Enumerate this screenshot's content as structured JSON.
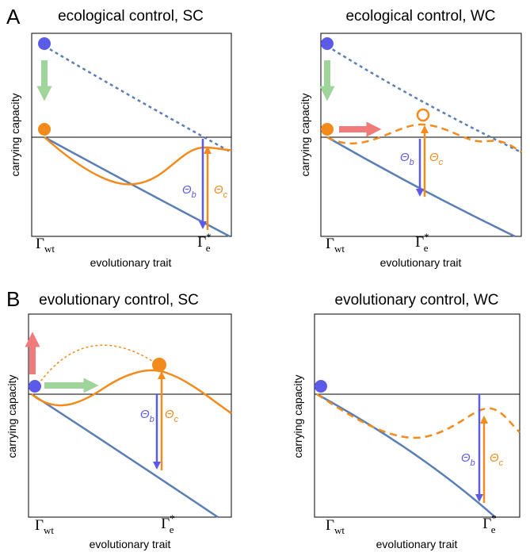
{
  "figure_labels": [
    "A",
    "B"
  ],
  "panels": [
    {
      "title": "ecological control, SC",
      "y_label": "carrying capacity",
      "x_label": "evolutionary trait",
      "x_ticks": [
        {
          "symbol": "Γ",
          "sub": "wt"
        },
        {
          "symbol": "Γ",
          "sub": "e",
          "sup": "*"
        }
      ],
      "arrow_labels": [
        {
          "symbol": "Θ",
          "sub": "b"
        },
        {
          "symbol": "Θ",
          "sub": "c"
        }
      ]
    },
    {
      "title": "ecological control, WC",
      "y_label": "carrying capacity",
      "x_label": "evolutionary trait",
      "x_ticks": [
        {
          "symbol": "Γ",
          "sub": "wt"
        },
        {
          "symbol": "Γ",
          "sub": "e",
          "sup": "*"
        }
      ],
      "arrow_labels": [
        {
          "symbol": "Θ",
          "sub": "b"
        },
        {
          "symbol": "Θ",
          "sub": "c"
        }
      ]
    },
    {
      "title": "evolutionary control, SC",
      "y_label": "carrying capacity",
      "x_label": "evolutionary trait",
      "x_ticks": [
        {
          "symbol": "Γ",
          "sub": "wt"
        },
        {
          "symbol": "Γ",
          "sub": "e",
          "sup": "*"
        }
      ],
      "arrow_labels": [
        {
          "symbol": "Θ",
          "sub": "b"
        },
        {
          "symbol": "Θ",
          "sub": "c"
        }
      ]
    },
    {
      "title": "evolutionary control, WC",
      "y_label": "carrying capacity",
      "x_label": "evolutionary trait",
      "x_ticks": [
        {
          "symbol": "Γ",
          "sub": "wt"
        },
        {
          "symbol": "Γ",
          "sub": "e",
          "sup": "*"
        }
      ],
      "arrow_labels": [
        {
          "symbol": "Θ",
          "sub": "b"
        },
        {
          "symbol": "Θ",
          "sub": "c"
        }
      ]
    }
  ]
}
